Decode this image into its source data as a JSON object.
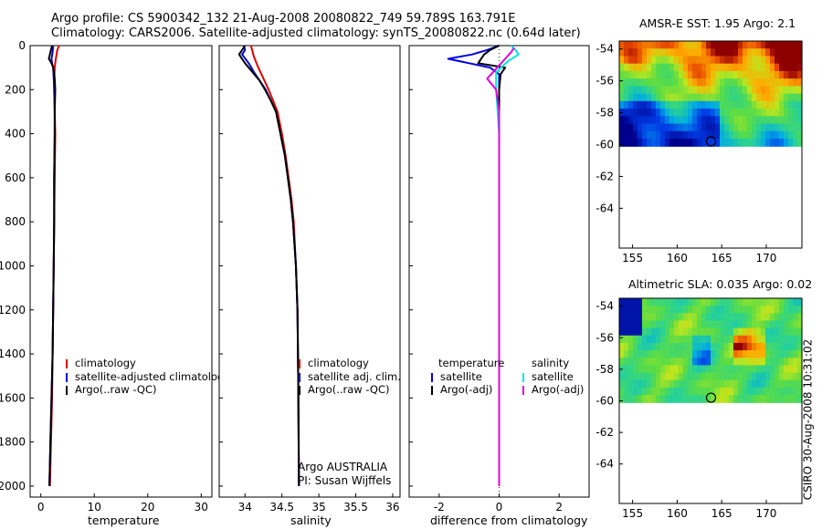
{
  "header": {
    "line1": "Argo profile: CS 5900342_132 21-Aug-2008 20080822_749 59.789S 163.791E",
    "line2": "Climatology: CARS2006. Satellite-adjusted climatology: synTS_20080822.nc (0.64d later)"
  },
  "stamp": "CSIRO 30-Aug-2008 10:31:02",
  "colors": {
    "red": "#e00000",
    "blue": "#0000e0",
    "black": "#000000",
    "cyan": "#00e5e5",
    "magenta": "#e000e0"
  },
  "chart_data": [
    {
      "type": "line",
      "id": "temperature",
      "xlabel": "temperature",
      "xlim": [
        -2,
        32
      ],
      "ylim": [
        0,
        2050
      ],
      "y_reversed": true,
      "xticks": [
        0,
        10,
        20,
        30
      ],
      "yticks": [
        0,
        200,
        400,
        600,
        800,
        1000,
        1200,
        1400,
        1600,
        1800,
        2000
      ],
      "series": [
        {
          "name": "climatology",
          "color": "red",
          "points": [
            [
              3.4,
              0
            ],
            [
              3.1,
              20
            ],
            [
              2.8,
              60
            ],
            [
              2.6,
              100
            ],
            [
              2.5,
              200
            ],
            [
              2.6,
              300
            ],
            [
              2.7,
              400
            ],
            [
              2.6,
              600
            ],
            [
              2.5,
              800
            ],
            [
              2.4,
              1000
            ],
            [
              2.3,
              1200
            ],
            [
              2.2,
              1400
            ],
            [
              2.1,
              1600
            ],
            [
              1.9,
              1800
            ],
            [
              1.7,
              2000
            ]
          ]
        },
        {
          "name": "satellite-adjusted climatology",
          "color": "blue",
          "points": [
            [
              2.3,
              0
            ],
            [
              2.2,
              30
            ],
            [
              2.0,
              60
            ],
            [
              2.1,
              80
            ],
            [
              2.3,
              100
            ],
            [
              2.4,
              150
            ],
            [
              2.5,
              200
            ],
            [
              2.6,
              300
            ],
            [
              2.6,
              400
            ],
            [
              2.5,
              600
            ],
            [
              2.5,
              800
            ],
            [
              2.4,
              1000
            ],
            [
              2.3,
              1200
            ],
            [
              2.2,
              1400
            ],
            [
              2.0,
              1600
            ],
            [
              1.8,
              1800
            ],
            [
              1.6,
              2000
            ]
          ]
        },
        {
          "name": "Argo(..raw -QC)",
          "color": "black",
          "points": [
            [
              2.1,
              0
            ],
            [
              1.8,
              30
            ],
            [
              1.5,
              60
            ],
            [
              2.0,
              80
            ],
            [
              2.3,
              100
            ],
            [
              2.6,
              150
            ],
            [
              2.7,
              200
            ],
            [
              2.6,
              300
            ],
            [
              2.6,
              400
            ],
            [
              2.5,
              600
            ],
            [
              2.5,
              800
            ],
            [
              2.4,
              1000
            ],
            [
              2.3,
              1200
            ],
            [
              2.2,
              1400
            ],
            [
              2.0,
              1600
            ],
            [
              1.8,
              1800
            ],
            [
              1.6,
              2000
            ]
          ]
        }
      ],
      "legend": [
        "climatology",
        "satellite-adjusted climatology",
        "Argo(..raw -QC)"
      ]
    },
    {
      "type": "line",
      "id": "salinity",
      "xlabel": "salinity",
      "xlim": [
        33.65,
        36.1
      ],
      "ylim": [
        0,
        2050
      ],
      "y_reversed": true,
      "xticks": [
        34,
        34.5,
        35,
        35.5,
        36
      ],
      "yticks": [
        0,
        200,
        400,
        600,
        800,
        1000,
        1200,
        1400,
        1600,
        1800,
        2000
      ],
      "series": [
        {
          "name": "climatology",
          "color": "red",
          "points": [
            [
              34.08,
              0
            ],
            [
              34.12,
              50
            ],
            [
              34.18,
              100
            ],
            [
              34.25,
              150
            ],
            [
              34.32,
              200
            ],
            [
              34.38,
              250
            ],
            [
              34.44,
              300
            ],
            [
              34.5,
              400
            ],
            [
              34.55,
              500
            ],
            [
              34.59,
              600
            ],
            [
              34.63,
              700
            ],
            [
              34.66,
              800
            ],
            [
              34.69,
              1000
            ],
            [
              34.71,
              1200
            ],
            [
              34.72,
              1500
            ],
            [
              34.73,
              2000
            ]
          ]
        },
        {
          "name": "satellite adj. clim.",
          "color": "blue",
          "points": [
            [
              33.98,
              0
            ],
            [
              34.0,
              20
            ],
            [
              33.96,
              40
            ],
            [
              34.05,
              80
            ],
            [
              34.12,
              120
            ],
            [
              34.2,
              160
            ],
            [
              34.28,
              200
            ],
            [
              34.35,
              250
            ],
            [
              34.42,
              300
            ],
            [
              34.48,
              400
            ],
            [
              34.54,
              500
            ],
            [
              34.58,
              600
            ],
            [
              34.62,
              700
            ],
            [
              34.65,
              800
            ],
            [
              34.69,
              1000
            ],
            [
              34.71,
              1200
            ],
            [
              34.72,
              1500
            ],
            [
              34.73,
              2000
            ]
          ]
        },
        {
          "name": "Argo(..raw -QC)",
          "color": "black",
          "points": [
            [
              34.0,
              0
            ],
            [
              33.96,
              20
            ],
            [
              33.92,
              40
            ],
            [
              34.0,
              80
            ],
            [
              34.1,
              120
            ],
            [
              34.2,
              160
            ],
            [
              34.27,
              200
            ],
            [
              34.35,
              250
            ],
            [
              34.42,
              300
            ],
            [
              34.48,
              400
            ],
            [
              34.54,
              500
            ],
            [
              34.58,
              600
            ],
            [
              34.62,
              700
            ],
            [
              34.65,
              800
            ],
            [
              34.69,
              1000
            ],
            [
              34.71,
              1200
            ],
            [
              34.72,
              1500
            ],
            [
              34.73,
              2000
            ]
          ]
        }
      ],
      "legend": [
        "climatology",
        "satellite adj. clim.",
        "Argo(..raw -QC)"
      ],
      "annotation": [
        "Argo AUSTRALIA",
        "PI: Susan Wijffels"
      ]
    },
    {
      "type": "line",
      "id": "difference",
      "xlabel": "difference from climatology",
      "xlim": [
        -3,
        3
      ],
      "ylim": [
        0,
        2050
      ],
      "y_reversed": true,
      "xticks": [
        -2,
        0,
        2
      ],
      "yticks": [
        0,
        200,
        400,
        600,
        800,
        1000,
        1200,
        1400,
        1600,
        1800,
        2000
      ],
      "series": [
        {
          "name": "temperature satellite",
          "color": "blue",
          "points": [
            [
              0,
              0
            ],
            [
              -0.4,
              20
            ],
            [
              -0.9,
              40
            ],
            [
              -1.7,
              60
            ],
            [
              -1.0,
              80
            ],
            [
              -0.3,
              100
            ],
            [
              0,
              130
            ],
            [
              0,
              200
            ],
            [
              0,
              2000
            ]
          ]
        },
        {
          "name": "temperature Argo(-adj)",
          "color": "black",
          "points": [
            [
              0,
              0
            ],
            [
              -0.3,
              20
            ],
            [
              -0.5,
              40
            ],
            [
              -0.6,
              60
            ],
            [
              -0.7,
              80
            ],
            [
              0.2,
              100
            ],
            [
              0.05,
              130
            ],
            [
              0,
              200
            ],
            [
              0,
              2000
            ]
          ]
        },
        {
          "name": "salinity satellite",
          "color": "cyan",
          "points": [
            [
              0.4,
              0
            ],
            [
              0.55,
              20
            ],
            [
              0.65,
              40
            ],
            [
              0.3,
              70
            ],
            [
              -0.1,
              120
            ],
            [
              -0.1,
              200
            ],
            [
              0,
              400
            ],
            [
              0,
              2000
            ]
          ]
        },
        {
          "name": "salinity Argo(-adj)",
          "color": "magenta",
          "points": [
            [
              0.5,
              10
            ],
            [
              0.4,
              30
            ],
            [
              0.2,
              60
            ],
            [
              -0.4,
              150
            ],
            [
              -0.1,
              200
            ],
            [
              0,
              300
            ],
            [
              0,
              2000
            ]
          ]
        }
      ],
      "legend_left_title": "temperature",
      "legend_right_title": "salinity",
      "legend_left": [
        "satellite",
        "Argo(-adj)"
      ],
      "legend_right": [
        "satellite",
        "Argo(-adj)"
      ]
    },
    {
      "type": "heatmap",
      "id": "sst",
      "title": "AMSR-E SST: 1.95 Argo: 2.1",
      "xlim": [
        153.5,
        174
      ],
      "ylim": [
        -66.5,
        -53.5
      ],
      "xticks": [
        155,
        160,
        165,
        170
      ],
      "yticks": [
        -54,
        -56,
        -58,
        -60,
        -62,
        -64
      ],
      "data_lat_range": [
        -60.1,
        -53.5
      ],
      "marker": {
        "lon": 163.8,
        "lat": -59.8
      }
    },
    {
      "type": "heatmap",
      "id": "sla",
      "title": "Altimetric SLA: 0.035 Argo: 0.02",
      "xlim": [
        153.5,
        174
      ],
      "ylim": [
        -66.5,
        -53.5
      ],
      "xticks": [
        155,
        160,
        165,
        170
      ],
      "yticks": [
        -54,
        -56,
        -58,
        -60,
        -62,
        -64
      ],
      "data_lat_range": [
        -60.1,
        -53.5
      ],
      "marker": {
        "lon": 163.8,
        "lat": -59.8
      }
    }
  ]
}
